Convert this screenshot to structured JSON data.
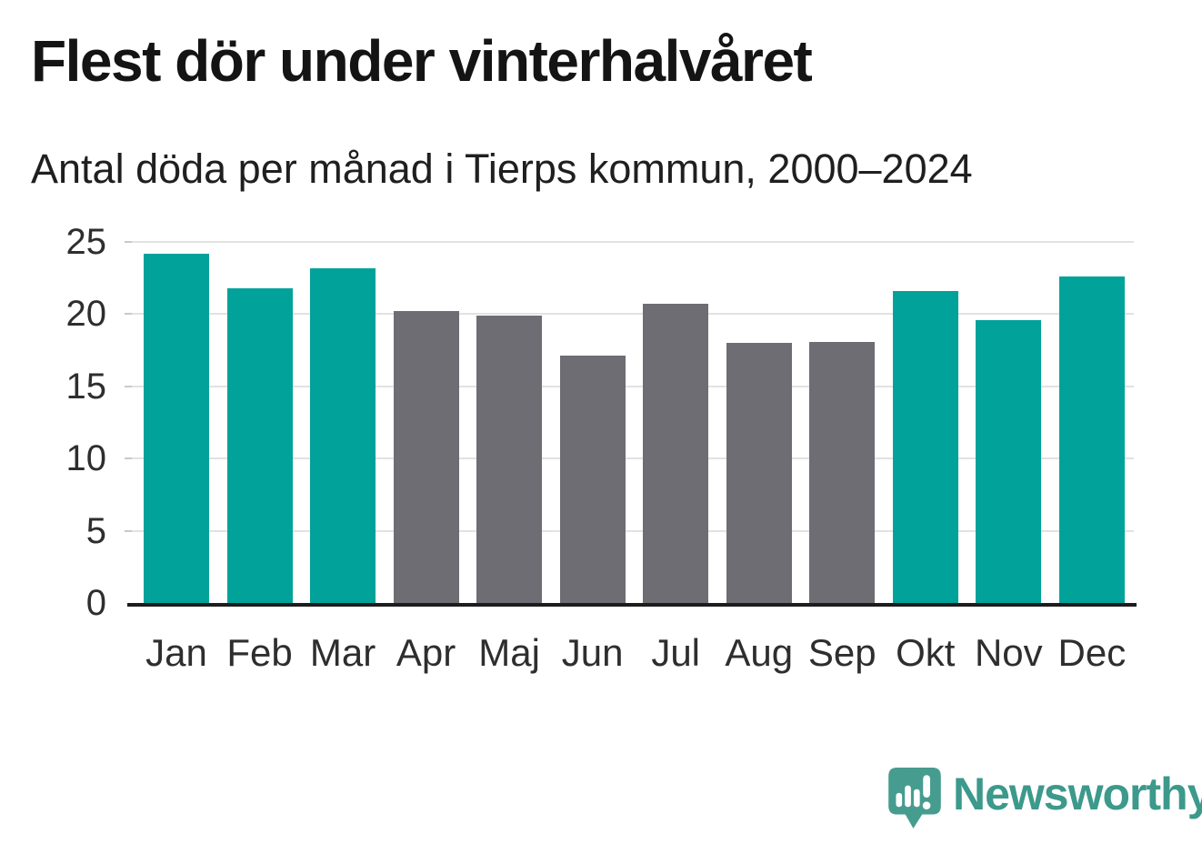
{
  "header": {
    "title": "Flest dör under vinterhalvåret",
    "subtitle": "Antal döda per månad i Tierps kommun, 2000–2024"
  },
  "chart_data": {
    "type": "bar",
    "title": "Flest dör under vinterhalvåret",
    "subtitle": "Antal döda per månad i Tierps kommun, 2000–2024",
    "categories": [
      "Jan",
      "Feb",
      "Mar",
      "Apr",
      "Maj",
      "Jun",
      "Jul",
      "Aug",
      "Sep",
      "Okt",
      "Nov",
      "Dec"
    ],
    "values": [
      24.2,
      21.8,
      23.2,
      20.2,
      19.9,
      17.1,
      20.7,
      18.0,
      18.1,
      21.6,
      19.6,
      22.6
    ],
    "bar_colors": [
      "teal",
      "teal",
      "teal",
      "gray",
      "gray",
      "gray",
      "gray",
      "gray",
      "gray",
      "teal",
      "teal",
      "teal"
    ],
    "colors": {
      "teal": "#00a29a",
      "gray": "#6e6d73"
    },
    "xlabel": "",
    "ylabel": "",
    "ylim": [
      0,
      25
    ],
    "yticks": [
      0,
      5,
      10,
      15,
      20,
      25
    ],
    "grid": true,
    "legend": false,
    "highlight_meaning": "teal = winter half-year months, gray = summer half-year months"
  },
  "branding": {
    "logo_text": "Newsworthy",
    "logo_icon": "speech-bubble-with-bar-chart-and-exclamation",
    "logo_color": "#3c998b",
    "icon_color": "#469c8f"
  }
}
